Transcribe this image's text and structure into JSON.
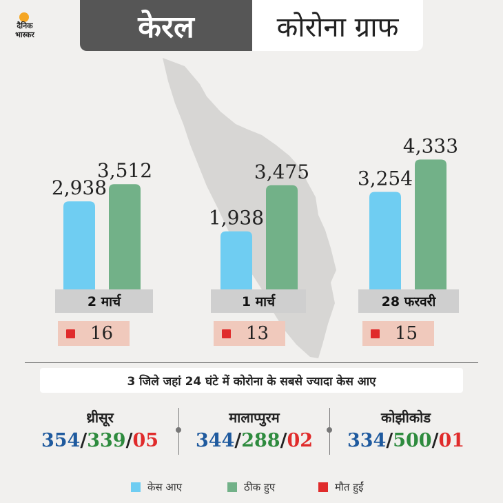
{
  "logo": {
    "line1": "दैनिक",
    "line2": "भास्कर"
  },
  "header": {
    "left": "केरल",
    "right": "कोरोना ग्राफ"
  },
  "colors": {
    "cases": "#6fcdf2",
    "recovered": "#72b188",
    "deaths": "#e02b2b"
  },
  "chart_data": {
    "type": "bar",
    "categories": [
      "2 मार्च",
      "1 मार्च",
      "28 फरवरी"
    ],
    "series": [
      {
        "name": "केस आए",
        "values": [
          2938,
          1938,
          3254
        ]
      },
      {
        "name": "ठीक हुए",
        "values": [
          3512,
          3475,
          4333
        ]
      }
    ],
    "value_labels": [
      [
        "2,938",
        "3,512"
      ],
      [
        "1,938",
        "3,475"
      ],
      [
        "3,254",
        "4,333"
      ]
    ],
    "deaths": [
      "16",
      "13",
      "15"
    ],
    "ylim": [
      0,
      5000
    ]
  },
  "subtitle": "3 जिले जहां 24 घंटे में कोरोना के सबसे ज्यादा केस आए",
  "districts": [
    {
      "name": "थ्रीसूर",
      "cases": "354",
      "recovered": "339",
      "deaths": "05"
    },
    {
      "name": "मालाप्पुरम",
      "cases": "344",
      "recovered": "288",
      "deaths": "02"
    },
    {
      "name": "कोझीकोड",
      "cases": "334",
      "recovered": "500",
      "deaths": "01"
    }
  ],
  "legend": [
    {
      "label": "केस आए",
      "color": "#6fcdf2"
    },
    {
      "label": "ठीक हुए",
      "color": "#72b188"
    },
    {
      "label": "मौत हुईं",
      "color": "#e02b2b"
    }
  ]
}
